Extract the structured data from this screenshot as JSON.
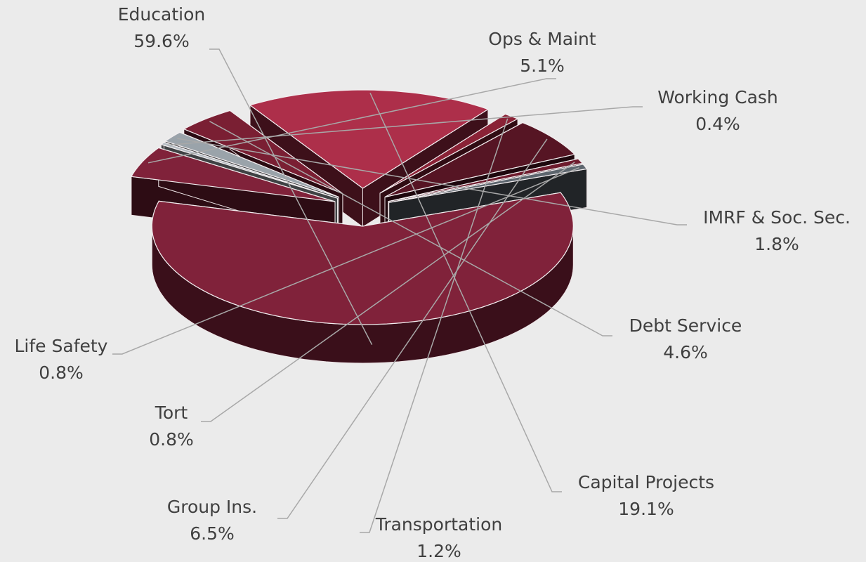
{
  "chart_data": {
    "type": "pie",
    "categories": [
      "Education",
      "Ops & Maint",
      "Working Cash",
      "IMRF & Soc. Sec.",
      "Debt Service",
      "Capital Projects",
      "Transportation",
      "Group Ins.",
      "Tort",
      "Life Safety"
    ],
    "values": [
      59.6,
      5.1,
      0.4,
      1.8,
      4.6,
      19.1,
      1.2,
      6.5,
      0.8,
      0.8
    ],
    "value_labels": [
      "59.6%",
      "5.1%",
      "0.4%",
      "1.8%",
      "4.6%",
      "19.1%",
      "1.2%",
      "6.5%",
      "0.8%",
      "0.8%"
    ],
    "colors": [
      "#80223a",
      "#80223a",
      "#b4bcc2",
      "#9aa3aa",
      "#7a1f33",
      "#ad2f4a",
      "#8a2236",
      "#561524",
      "#6e1b2d",
      "#5d666e"
    ]
  }
}
